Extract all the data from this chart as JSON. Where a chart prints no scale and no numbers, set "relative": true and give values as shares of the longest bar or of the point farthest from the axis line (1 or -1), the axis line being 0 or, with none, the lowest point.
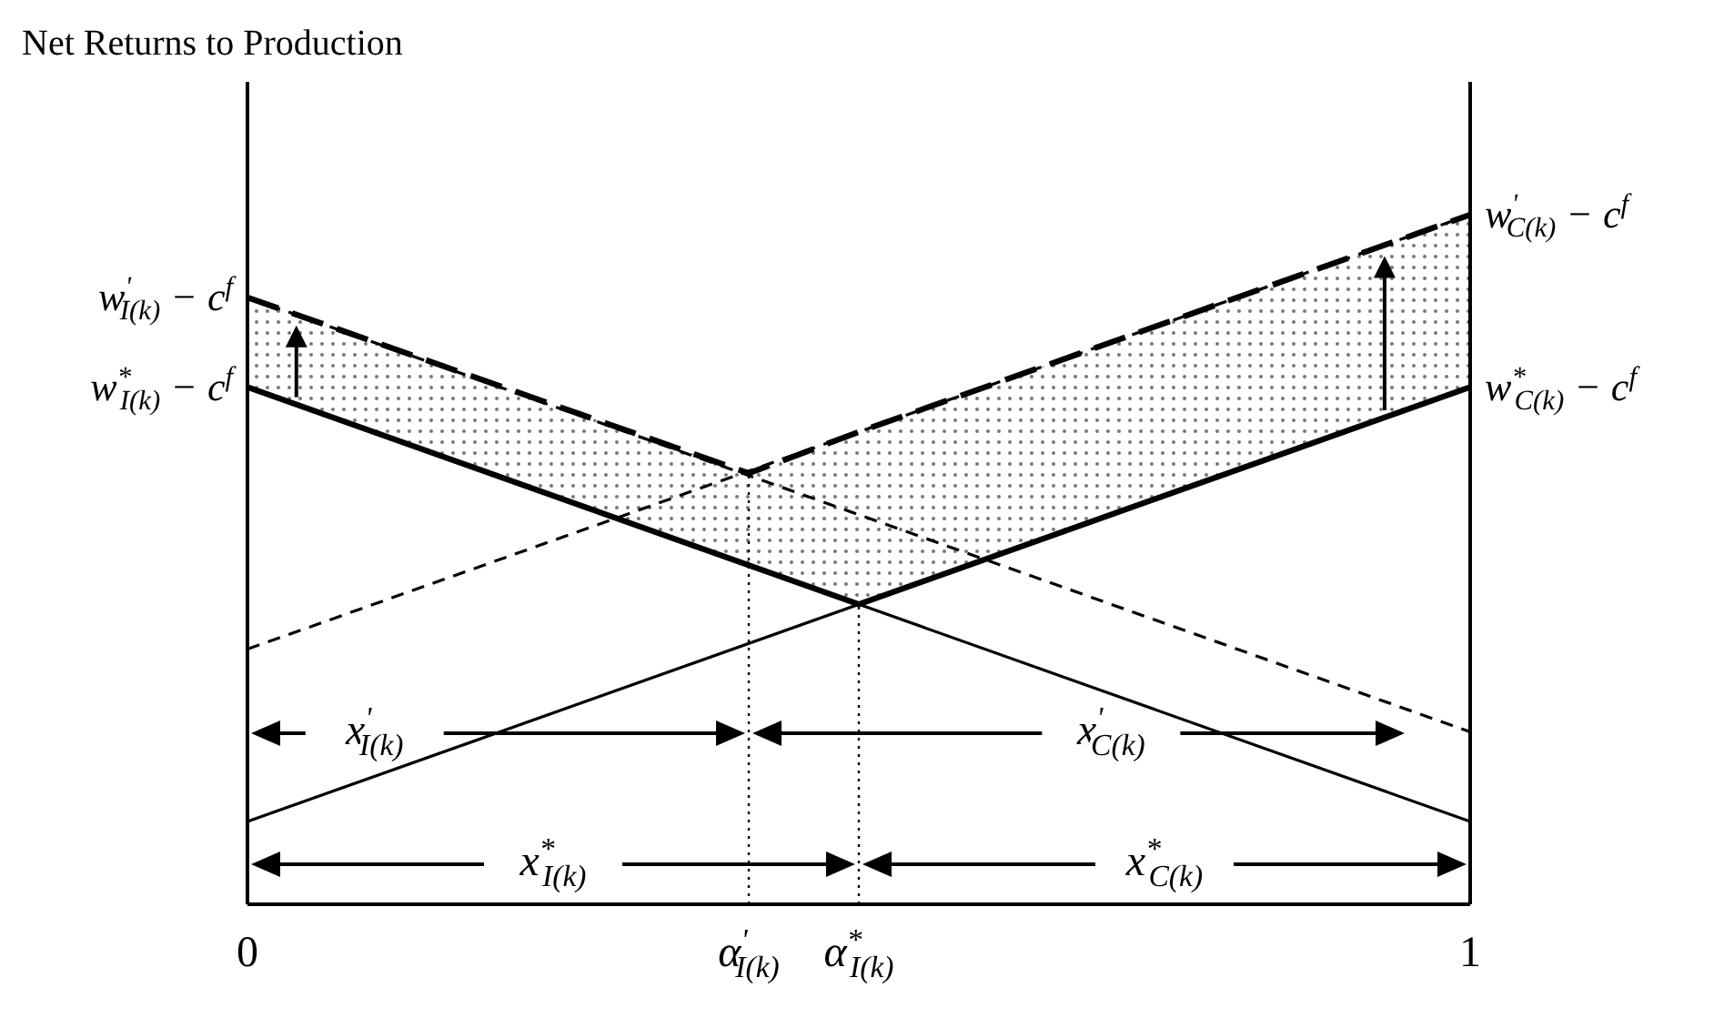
{
  "chart_data": {
    "type": "line",
    "relative": true,
    "ylabel": "Net Returns to Production",
    "x": [
      0,
      1
    ],
    "xlim": [
      0,
      1
    ],
    "xticks": [
      0,
      {
        "value": 0.41,
        "label": "α$^{'}$$_{I(k)}$"
      },
      {
        "value": 0.5,
        "label": "α$^{*}$$_{I(k)}$"
      },
      1
    ],
    "series": [
      {
        "name": "w$^{*}$$_{I(k)}$ − c$^{f}$",
        "color": "#000000",
        "values": [
          0.75,
          0.12
        ],
        "line_style": "solid"
      },
      {
        "name": "w$^{*}$$_{C(k)}$ − c$^{f}$",
        "color": "#000000",
        "values": [
          0.12,
          0.75
        ],
        "line_style": "solid"
      },
      {
        "name": "w$^{'}$$_{I(k)}$ − c$^{f}$",
        "color": "#000000",
        "values": [
          0.88,
          0.25
        ],
        "line_style": "dashed"
      },
      {
        "name": "w$^{'}$$_{C(k)}$ − c$^{f}$",
        "color": "#000000",
        "values": [
          0.37,
          1
        ],
        "line_style": "dashed"
      },
      {
        "color": "#000000",
        "x": [
          0,
          0.5,
          1
        ],
        "values": [
          0.75,
          0.435,
          0.75
        ],
        "line_style": "solid"
      },
      {
        "color": "#000000",
        "x": [
          0,
          0.41,
          0.5,
          1
        ],
        "values": [
          0.88,
          0.625,
          0.685,
          1
        ],
        "line_style": "dashed",
        "lower": [
          0.75,
          0.49,
          0.435,
          0.75
        ],
        "upper": [
          0.88,
          0.625,
          0.685,
          1
        ]
      }
    ],
    "ref_lines": [
      {
        "axis": "x",
        "value": 0.41,
        "line_style": "dotted"
      },
      {
        "axis": "x",
        "value": 0.5,
        "line_style": "dotted"
      }
    ],
    "annotations": [
      "x$^{'}$$_{I(k)}$",
      "x$^{'}$$_{C(k)}$",
      "x$^{*}$$_{I(k)}$",
      "x$^{*}$$_{C(k)}$"
    ]
  }
}
